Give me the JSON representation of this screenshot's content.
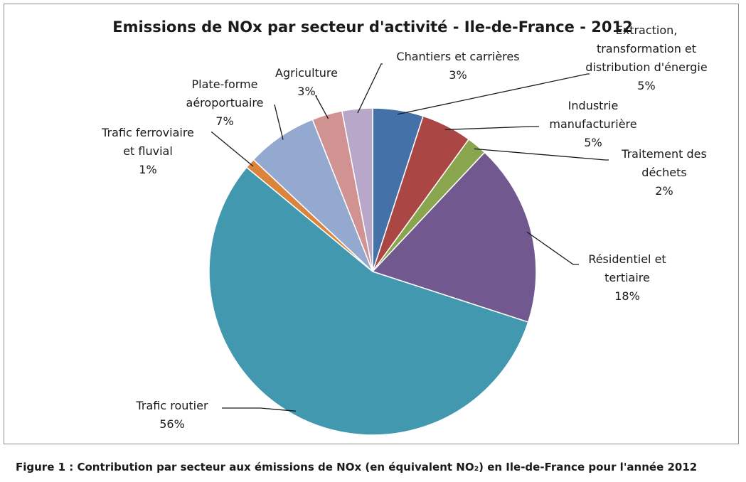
{
  "chart_data": {
    "type": "pie",
    "title": "Emissions de NOx par secteur d'activité - Ile-de-France - 2012",
    "unit": "%",
    "slices": [
      {
        "label": "Extraction, transformation et distribution d'énergie",
        "label_lines": [
          "Extraction,",
          "transformation et",
          "distribution d'énergie"
        ],
        "value": 5,
        "display": "5%",
        "color": "#4472a8"
      },
      {
        "label": "Industrie manufacturière",
        "label_lines": [
          "Industrie",
          "manufacturière"
        ],
        "value": 5,
        "display": "5%",
        "color": "#aa4643"
      },
      {
        "label": "Traitement des déchets",
        "label_lines": [
          "Traitement des",
          "déchets"
        ],
        "value": 2,
        "display": "2%",
        "color": "#89a54e"
      },
      {
        "label": "Résidentiel et tertiaire",
        "label_lines": [
          "Résidentiel et",
          "tertiaire"
        ],
        "value": 18,
        "display": "18%",
        "color": "#71588f"
      },
      {
        "label": "Trafic routier",
        "label_lines": [
          "Trafic routier"
        ],
        "value": 56,
        "display": "56%",
        "color": "#4198af"
      },
      {
        "label": "Trafic ferroviaire et fluvial",
        "label_lines": [
          "Trafic ferroviaire",
          "et fluvial"
        ],
        "value": 1,
        "display": "1%",
        "color": "#db843d"
      },
      {
        "label": "Plate-forme aéroportuaire",
        "label_lines": [
          "Plate-forme",
          "aéroportuaire"
        ],
        "value": 7,
        "display": "7%",
        "color": "#93a9cf"
      },
      {
        "label": "Agriculture",
        "label_lines": [
          "Agriculture"
        ],
        "value": 3,
        "display": "3%",
        "color": "#d19392"
      },
      {
        "label": "Chantiers et carrières",
        "label_lines": [
          "Chantiers et carrières"
        ],
        "value": 3,
        "display": "3%",
        "color": "#b9a7c9"
      }
    ]
  },
  "caption": "Figure 1 : Contribution par secteur aux émissions de NOx (en équivalent NO₂) en Ile-de-France pour l'année 2012"
}
